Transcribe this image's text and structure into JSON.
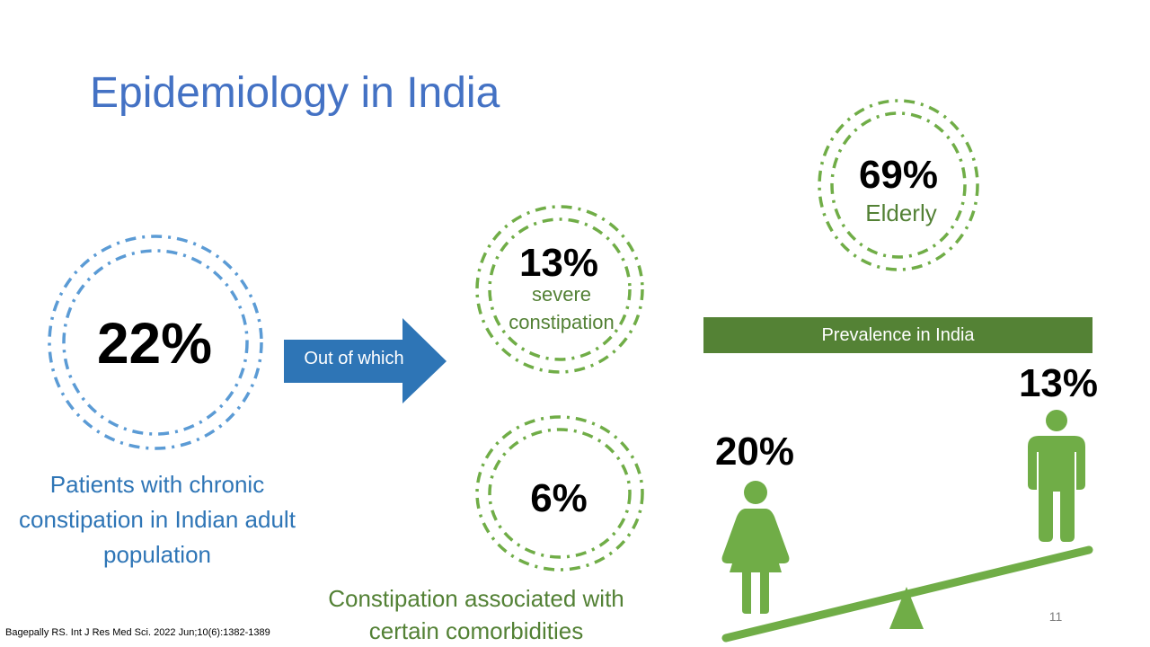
{
  "slide": {
    "title": "Epidemiology in India",
    "page_number": "11",
    "citation": "Bagepally RS. Int J Res Med Sci. 2022 Jun;10(6):1382-1389",
    "colors": {
      "title": "#4472c4",
      "blue": "#2e75b6",
      "ring_blue": "#5b9bd5",
      "green": "#70ad47",
      "green_dark": "#548235",
      "green_text": "#538135"
    }
  },
  "overall": {
    "value": "22%",
    "description": "Patients with chronic constipation in Indian adult population"
  },
  "arrow": {
    "label": "Out of which",
    "icon": "right-arrow"
  },
  "severe": {
    "value": "13%",
    "label_line1": "severe",
    "label_line2": "constipation"
  },
  "comorbidities": {
    "value": "6%",
    "label": "Constipation associated with certain comorbidities"
  },
  "elderly": {
    "value": "69%",
    "label": "Elderly"
  },
  "prevalence": {
    "banner": "Prevalence in India",
    "female": {
      "value": "20%",
      "icon": "female-icon"
    },
    "male": {
      "value": "13%",
      "icon": "male-icon"
    }
  }
}
